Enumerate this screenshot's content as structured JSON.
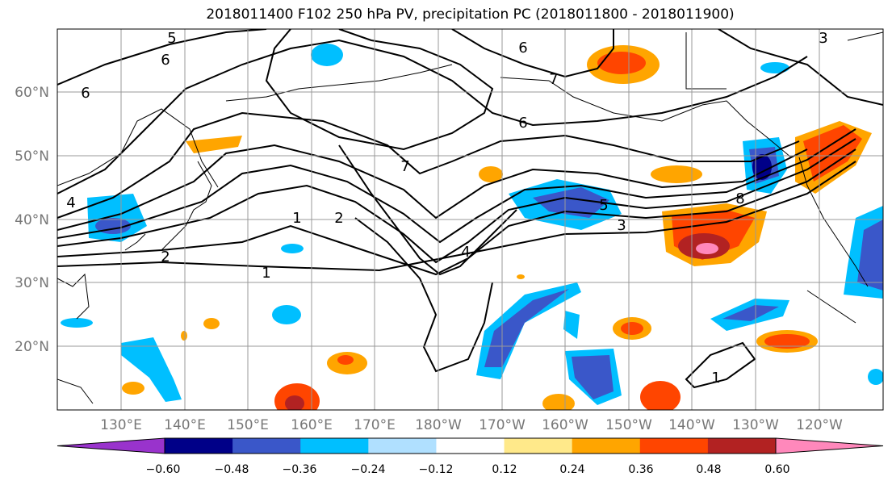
{
  "title": "2018011400 F102 250 hPa PV, precipitation PC (2018011800 - 2018011900)",
  "lat_labels": [
    "60°N",
    "50°N",
    "40°N",
    "30°N",
    "20°N"
  ],
  "lon_labels": [
    "130°E",
    "140°E",
    "150°E",
    "160°E",
    "170°E",
    "180°W",
    "170°W",
    "160°W",
    "150°W",
    "140°W",
    "130°W",
    "120°W"
  ],
  "contour_labels": [
    "5",
    "6",
    "6",
    "6",
    "7",
    "6",
    "7",
    "1",
    "2",
    "2",
    "1",
    "4",
    "5",
    "3",
    "8",
    "4",
    "1",
    "3"
  ],
  "colorbar": {
    "ticks": [
      "−0.60",
      "−0.48",
      "−0.36",
      "−0.24",
      "−0.12",
      "0.12",
      "0.24",
      "0.36",
      "0.48",
      "0.60"
    ],
    "colors": [
      "#9933cc",
      "#000088",
      "#3a57c9",
      "#00bfff",
      "#b0e0ff",
      "#ffffff",
      "#ffe98a",
      "#ffa500",
      "#ff4500",
      "#b22222",
      "#ff88bb"
    ]
  }
}
